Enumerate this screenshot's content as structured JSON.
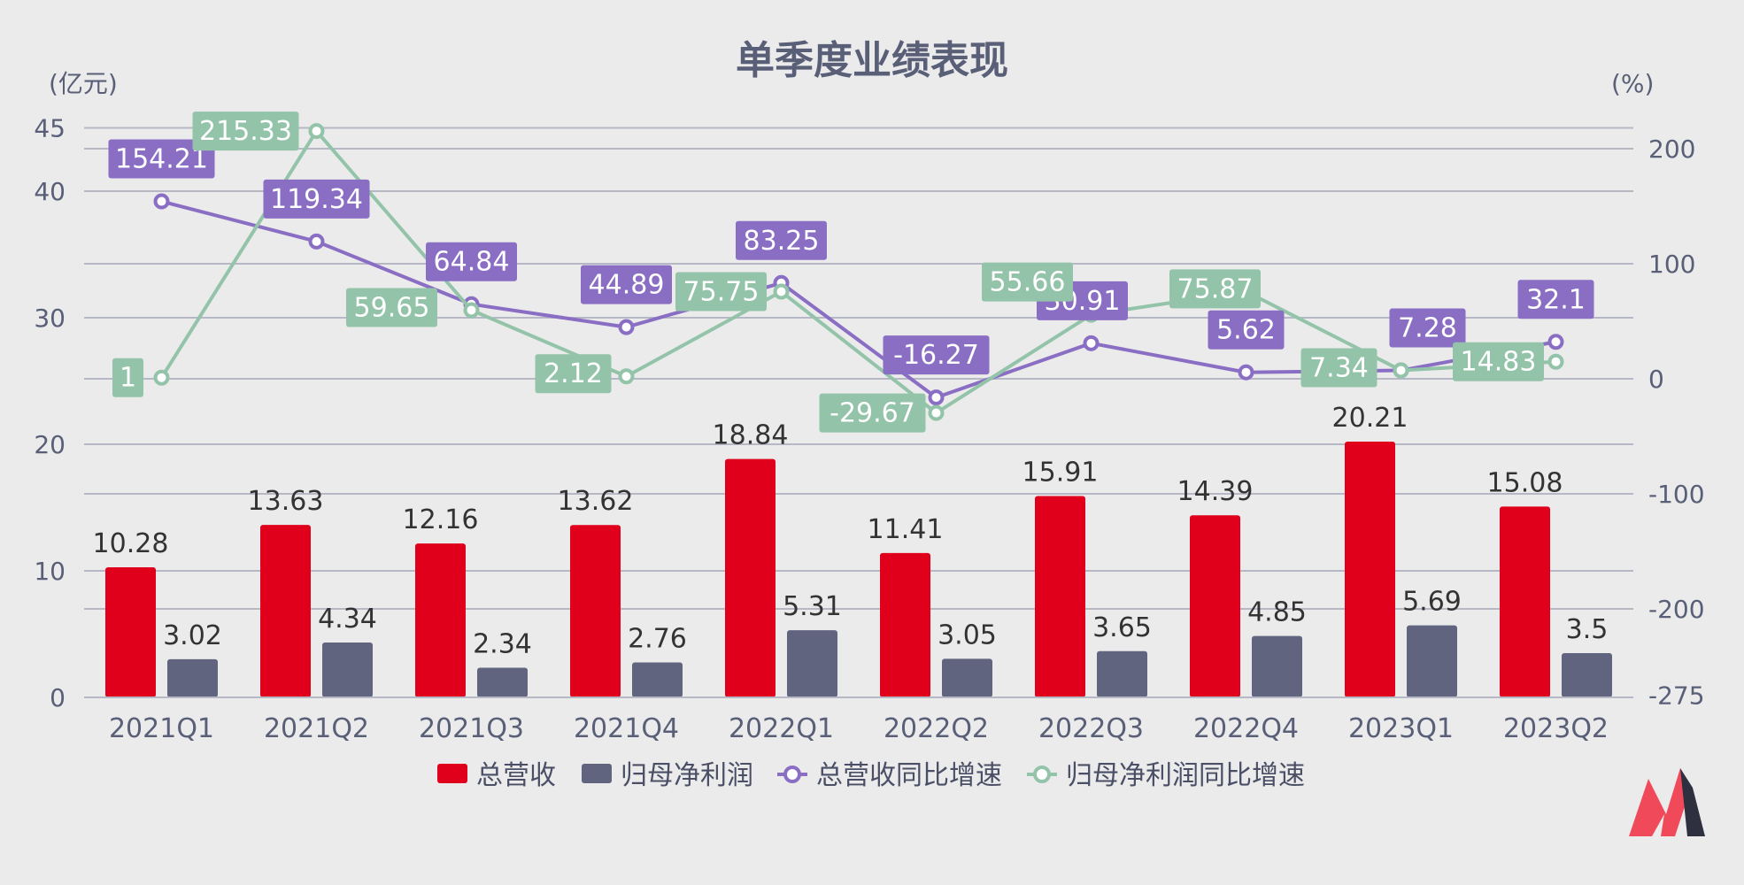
{
  "colors": {
    "background": "#ebebeb",
    "revenue": "#e0001b",
    "profit": "#60647e",
    "revenue_yoy": "#8a6ec4",
    "profit_yoy": "#93c4aa",
    "grid": "#b7b8c6",
    "text": "#5a5f78"
  },
  "logo": {
    "name": "brand-logo"
  },
  "chart_data": {
    "type": "bar",
    "title": "单季度业绩表现",
    "left_unit": "(亿元)",
    "right_unit": "(%)",
    "categories": [
      "2021Q1",
      "2021Q2",
      "2021Q3",
      "2021Q4",
      "2022Q1",
      "2022Q2",
      "2022Q3",
      "2022Q4",
      "2023Q1",
      "2023Q2"
    ],
    "left_axis": {
      "ticks": [
        0,
        10,
        20,
        30,
        40,
        45
      ],
      "ylim": [
        0,
        45
      ]
    },
    "right_axis": {
      "ticks": [
        -275,
        -200,
        -100,
        0,
        100,
        200
      ],
      "ylim": [
        -275,
        215
      ]
    },
    "grid": true,
    "legend_position": "bottom",
    "series": [
      {
        "name": "总营收",
        "type": "bar",
        "axis": "left",
        "values": [
          10.28,
          13.63,
          12.16,
          13.62,
          18.84,
          11.41,
          15.91,
          14.39,
          20.21,
          15.08
        ],
        "labels": [
          "10.28",
          "13.63",
          "12.16",
          "13.62",
          "18.84",
          "11.41",
          "15.91",
          "14.39",
          "20.21",
          "15.08"
        ]
      },
      {
        "name": "归母净利润",
        "type": "bar",
        "axis": "left",
        "values": [
          3.02,
          4.34,
          2.34,
          2.76,
          5.31,
          3.05,
          3.65,
          4.85,
          5.69,
          3.5
        ],
        "labels": [
          "3.02",
          "4.34",
          "2.34",
          "2.76",
          "5.31",
          "3.05",
          "3.65",
          "4.85",
          "5.69",
          "3.5"
        ]
      },
      {
        "name": "总营收同比增速",
        "type": "line",
        "axis": "right",
        "values": [
          154.21,
          119.34,
          64.84,
          44.89,
          83.25,
          -16.27,
          30.91,
          5.62,
          7.28,
          32.1
        ],
        "labels": [
          "154.21",
          "119.34",
          "64.84",
          "44.89",
          "83.25",
          "-16.27",
          "30.91",
          "5.62",
          "7.28",
          "32.1"
        ]
      },
      {
        "name": "归母净利润同比增速",
        "type": "line",
        "axis": "right",
        "values": [
          1,
          215.33,
          59.65,
          2.12,
          75.75,
          -29.67,
          55.66,
          75.87,
          7.34,
          14.83
        ],
        "labels": [
          "1",
          "215.33",
          "59.65",
          "2.12",
          "75.75",
          "-29.67",
          "55.66",
          "75.87",
          "7.34",
          "14.83"
        ]
      }
    ]
  }
}
